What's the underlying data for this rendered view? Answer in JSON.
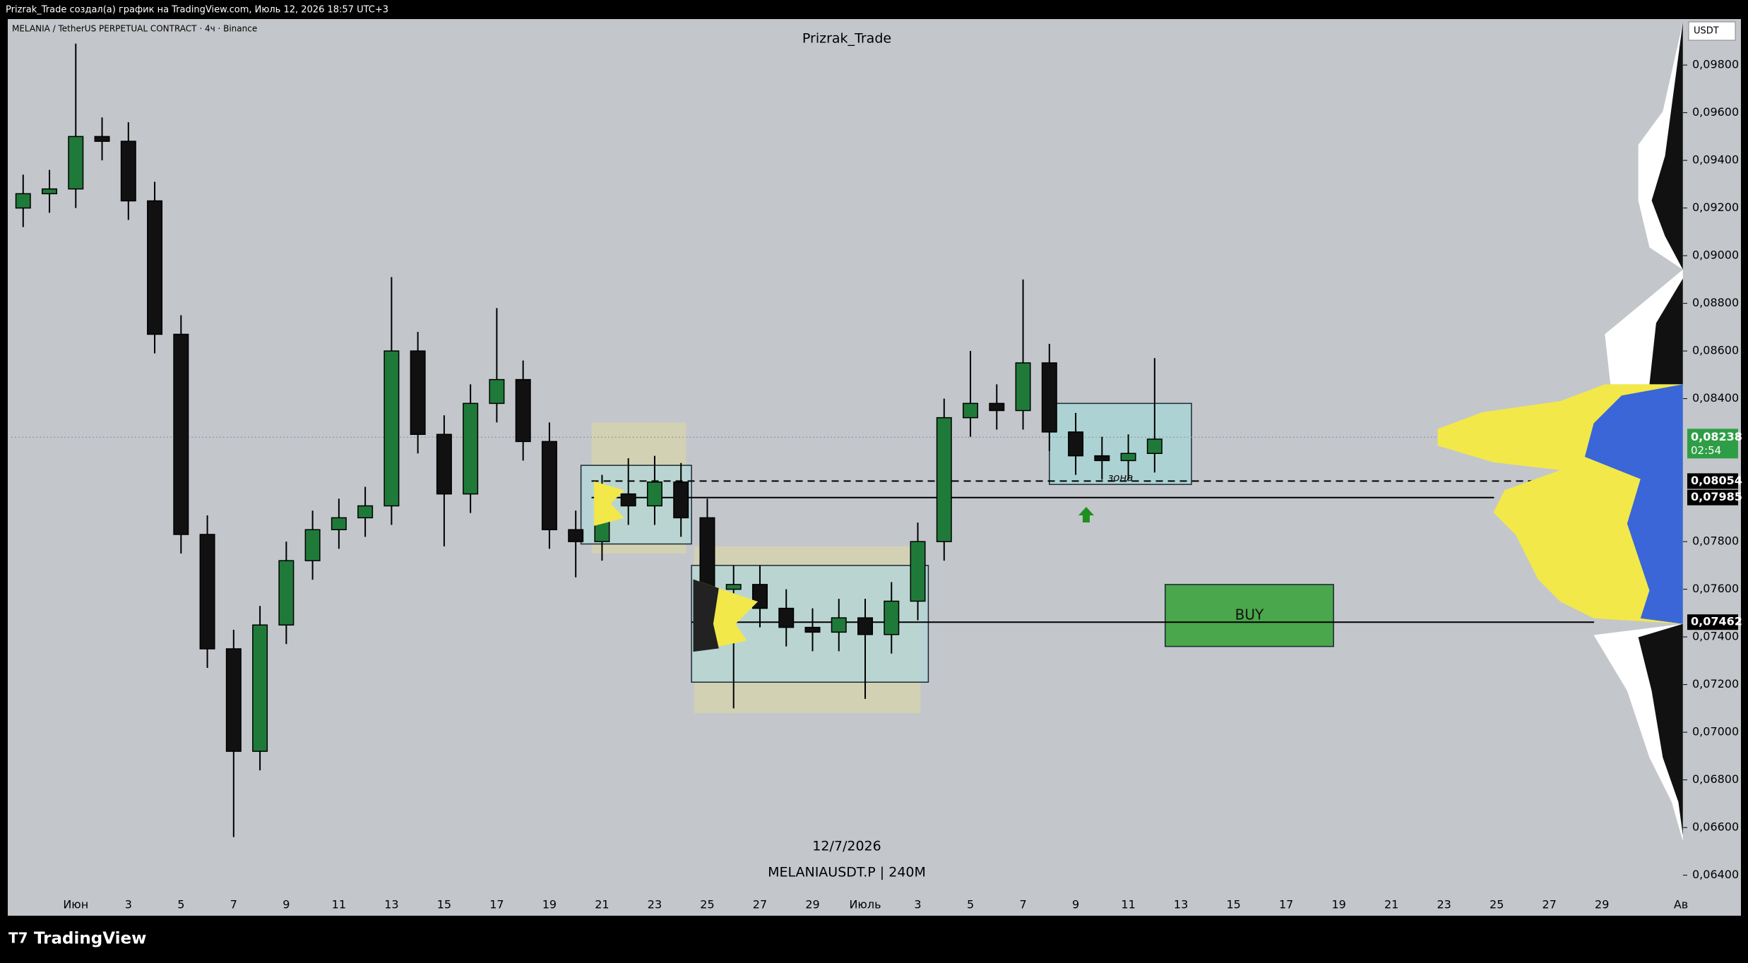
{
  "header": {
    "credit": "Prizrak_Trade создал(а) график на TradingView.com, Июль 12, 2026 18:57 UTC+3"
  },
  "footer": {
    "brand": "TradingView"
  },
  "chart_data": {
    "type": "candlestick",
    "title": "Prizrak_Trade",
    "symbol": "MELANIA / TetherUS PERPETUAL CONTRACT · 4ч · Binance",
    "date_caption": "12/7/2026",
    "ticker_caption": "MELANIAUSDT.P | 240M",
    "axis_unit": "USDT",
    "up_color": "#1f7a3a",
    "down_color": "#111111",
    "x": [
      -2,
      -1,
      0,
      1,
      2,
      3,
      4,
      5,
      6,
      7,
      8,
      9,
      10,
      11,
      12,
      13,
      14,
      15,
      16,
      17,
      18,
      19,
      20,
      21,
      22,
      23,
      24,
      25,
      26,
      27,
      28,
      29,
      30,
      31,
      32,
      33,
      34,
      35,
      36,
      37,
      38,
      39,
      40,
      41
    ],
    "open": [
      0.092,
      0.0926,
      0.0928,
      0.095,
      0.0948,
      0.0923,
      0.0867,
      0.0783,
      0.0735,
      0.0692,
      0.0745,
      0.0772,
      0.0785,
      0.079,
      0.0795,
      0.086,
      0.0825,
      0.08,
      0.0838,
      0.0848,
      0.0822,
      0.0785,
      0.078,
      0.08,
      0.0795,
      0.0805,
      0.079,
      0.076,
      0.0762,
      0.0752,
      0.0744,
      0.0742,
      0.0748,
      0.0741,
      0.0755,
      0.078,
      0.0832,
      0.0838,
      0.0835,
      0.0855,
      0.0826,
      0.0816,
      0.0814,
      0.0817
    ],
    "high": [
      0.0934,
      0.0936,
      0.0989,
      0.0958,
      0.0956,
      0.0931,
      0.0875,
      0.0791,
      0.0743,
      0.0753,
      0.078,
      0.0793,
      0.0798,
      0.0803,
      0.0891,
      0.0868,
      0.0833,
      0.0846,
      0.0878,
      0.0856,
      0.083,
      0.0793,
      0.0808,
      0.0815,
      0.0816,
      0.0813,
      0.0798,
      0.077,
      0.077,
      0.076,
      0.0752,
      0.0756,
      0.0756,
      0.0763,
      0.0788,
      0.084,
      0.086,
      0.0846,
      0.089,
      0.0863,
      0.0834,
      0.0824,
      0.0825,
      0.0857
    ],
    "low": [
      0.0912,
      0.0918,
      0.092,
      0.094,
      0.0915,
      0.0859,
      0.0775,
      0.0727,
      0.0656,
      0.0684,
      0.0737,
      0.0764,
      0.0777,
      0.0782,
      0.0787,
      0.0817,
      0.0778,
      0.0792,
      0.083,
      0.0814,
      0.0777,
      0.0765,
      0.0772,
      0.0787,
      0.0787,
      0.0782,
      0.0752,
      0.071,
      0.0744,
      0.0736,
      0.0734,
      0.0734,
      0.0714,
      0.0733,
      0.0747,
      0.0772,
      0.0824,
      0.0827,
      0.0827,
      0.0818,
      0.0808,
      0.0806,
      0.0806,
      0.0809
    ],
    "close": [
      0.0926,
      0.0928,
      0.095,
      0.0948,
      0.0923,
      0.0867,
      0.0783,
      0.0735,
      0.0692,
      0.0745,
      0.0772,
      0.0785,
      0.079,
      0.0795,
      0.086,
      0.0825,
      0.08,
      0.0838,
      0.0848,
      0.0822,
      0.0785,
      0.078,
      0.08,
      0.0795,
      0.0805,
      0.079,
      0.076,
      0.0762,
      0.0752,
      0.0744,
      0.0742,
      0.0748,
      0.0741,
      0.0755,
      0.078,
      0.0832,
      0.0838,
      0.0835,
      0.0855,
      0.0826,
      0.0816,
      0.0814,
      0.0817,
      0.0823
    ],
    "xlim": [
      -2.45,
      61.0
    ],
    "ylim": [
      0.0623,
      0.0999
    ],
    "xticks": [
      {
        "value": 0,
        "label": "Июн"
      },
      {
        "value": 2,
        "label": "3"
      },
      {
        "value": 4,
        "label": "5"
      },
      {
        "value": 6,
        "label": "7"
      },
      {
        "value": 8,
        "label": "9"
      },
      {
        "value": 10,
        "label": "11"
      },
      {
        "value": 12,
        "label": "13"
      },
      {
        "value": 14,
        "label": "15"
      },
      {
        "value": 16,
        "label": "17"
      },
      {
        "value": 18,
        "label": "19"
      },
      {
        "value": 20,
        "label": "21"
      },
      {
        "value": 22,
        "label": "23"
      },
      {
        "value": 24,
        "label": "25"
      },
      {
        "value": 26,
        "label": "27"
      },
      {
        "value": 28,
        "label": "29"
      },
      {
        "value": 30,
        "label": "Июль"
      },
      {
        "value": 32,
        "label": "3"
      },
      {
        "value": 34,
        "label": "5"
      },
      {
        "value": 36,
        "label": "7"
      },
      {
        "value": 38,
        "label": "9"
      },
      {
        "value": 40,
        "label": "11"
      },
      {
        "value": 42,
        "label": "13"
      },
      {
        "value": 44,
        "label": "15"
      },
      {
        "value": 46,
        "label": "17"
      },
      {
        "value": 48,
        "label": "19"
      },
      {
        "value": 50,
        "label": "21"
      },
      {
        "value": 52,
        "label": "23"
      },
      {
        "value": 54,
        "label": "25"
      },
      {
        "value": 56,
        "label": "27"
      },
      {
        "value": 58,
        "label": "29"
      },
      {
        "value": 61,
        "label": "Ав"
      }
    ],
    "yticks": [
      {
        "value": 0.098,
        "label": "0,09800"
      },
      {
        "value": 0.096,
        "label": "0,09600"
      },
      {
        "value": 0.094,
        "label": "0,09400"
      },
      {
        "value": 0.092,
        "label": "0,09200"
      },
      {
        "value": 0.09,
        "label": "0,09000"
      },
      {
        "value": 0.088,
        "label": "0,08800"
      },
      {
        "value": 0.086,
        "label": "0,08600"
      },
      {
        "value": 0.084,
        "label": "0,08400"
      },
      {
        "value": 0.078,
        "label": "0,07800"
      },
      {
        "value": 0.076,
        "label": "0,07600"
      },
      {
        "value": 0.074,
        "label": "0,07400"
      },
      {
        "value": 0.072,
        "label": "0,07200"
      },
      {
        "value": 0.07,
        "label": "0,07000"
      },
      {
        "value": 0.068,
        "label": "0,06800"
      },
      {
        "value": 0.066,
        "label": "0,06600"
      },
      {
        "value": 0.064,
        "label": "0,06400"
      }
    ],
    "price_labels": [
      {
        "value": 0.08238,
        "label": "0,08238",
        "countdown": "02:54",
        "color": "#2e9e46"
      },
      {
        "value": 0.08054,
        "label": "0,08054",
        "color": "#000000"
      },
      {
        "value": 0.07985,
        "label": "0,07985",
        "color": "#000000"
      },
      {
        "value": 0.07462,
        "label": "0,07462",
        "color": "#000000"
      }
    ],
    "zones": [
      {
        "x": [
          19.6,
          23.2
        ],
        "y": [
          0.0775,
          0.083
        ],
        "fill": "#d6d3ae"
      },
      {
        "x": [
          23.5,
          32.1
        ],
        "y": [
          0.0708,
          0.0778
        ],
        "fill": "#d6d3ae"
      },
      {
        "x": [
          19.2,
          23.4
        ],
        "y": [
          0.0779,
          0.0812
        ],
        "fill": "#b4d6d8"
      },
      {
        "x": [
          23.4,
          32.4
        ],
        "y": [
          0.0721,
          0.077
        ],
        "fill": "#b4d6d8"
      },
      {
        "x": [
          37.0,
          42.4
        ],
        "y": [
          0.0804,
          0.0838
        ],
        "fill": "#a9d3d6",
        "label": "зона"
      },
      {
        "x": [
          41.4,
          47.8
        ],
        "y": [
          0.0736,
          0.0762
        ],
        "fill": "#35a135",
        "label": "BUY"
      }
    ],
    "lines": [
      {
        "value": 0.08238,
        "x": [
          -2.45,
          61.0
        ],
        "style": "dotted"
      },
      {
        "value": 0.08054,
        "x": [
          19.6,
          61.0
        ],
        "style": "dashed"
      },
      {
        "value": 0.07985,
        "x": [
          19.6,
          53.9
        ],
        "style": "solid"
      },
      {
        "value": 0.07462,
        "x": [
          23.4,
          57.7
        ],
        "style": "solid"
      }
    ],
    "arrows": [
      {
        "x": 38.4,
        "y": 0.0791,
        "color": "#1f8f1f"
      }
    ]
  }
}
